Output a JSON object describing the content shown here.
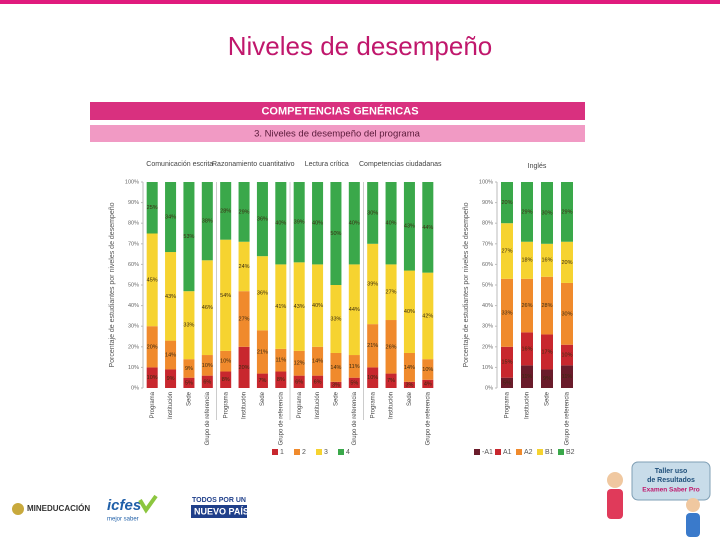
{
  "title": "Niveles de desempeño",
  "header": {
    "title": "COMPETENCIAS GENÉRICAS",
    "subtitle": "3. Niveles de desempeño del programa"
  },
  "chart_data": [
    {
      "type": "stacked_bar",
      "ylabel": "Porcentaje de estudiantes por niveles de desempeño",
      "groups": [
        "Comunicación escrita",
        "Razonamiento cuantitativo",
        "Lectura crítica",
        "Competencias ciudadanas"
      ],
      "categories": [
        "Programa",
        "Institución",
        "Sede",
        "Grupo de referencia",
        "Programa",
        "Institución",
        "Sede",
        "Grupo de referencia",
        "Programa",
        "Institución",
        "Sede",
        "Grupo de referencia",
        "Programa",
        "Institución",
        "Sede",
        "Grupo de referencia"
      ],
      "ylim": [
        0,
        100
      ],
      "yticks": [
        {
          "value": 0,
          "label": "0%"
        },
        {
          "value": 10,
          "label": "10%"
        },
        {
          "value": 20,
          "label": "20%"
        },
        {
          "value": 30,
          "label": "30%"
        },
        {
          "value": 40,
          "label": "40%"
        },
        {
          "value": 50,
          "label": "50%"
        },
        {
          "value": 60,
          "label": "60%"
        },
        {
          "value": 70,
          "label": "70%"
        },
        {
          "value": 80,
          "label": "80%"
        },
        {
          "value": 90,
          "label": "90%"
        },
        {
          "value": 100,
          "label": "100%"
        }
      ],
      "series": [
        {
          "name": "1",
          "color": "#c8272e",
          "values": [
            10,
            9,
            5,
            6,
            8,
            20,
            7,
            8,
            6,
            6,
            3,
            5,
            10,
            7,
            3,
            4
          ],
          "value_labels": [
            "10%",
            "9%",
            "5%",
            "6%",
            "8%",
            "20%",
            "7%",
            "8%",
            "6%",
            "6%",
            "3%",
            "5%",
            "10%",
            "7%",
            "3%",
            "4%"
          ]
        },
        {
          "name": "2",
          "color": "#f08a2c",
          "values": [
            20,
            14,
            9,
            10,
            10,
            27,
            21,
            11,
            12,
            14,
            14,
            11,
            21,
            26,
            14,
            10
          ],
          "value_labels": [
            "20%",
            "14%",
            "9%",
            "10%",
            "10%",
            "27%",
            "21%",
            "11%",
            "12%",
            "14%",
            "14%",
            "11%",
            "21%",
            "26%",
            "14%",
            "10%"
          ]
        },
        {
          "name": "3",
          "color": "#f6d330",
          "values": [
            45,
            43,
            33,
            46,
            54,
            24,
            36,
            41,
            43,
            40,
            33,
            44,
            39,
            27,
            40,
            42
          ],
          "value_labels": [
            "45%",
            "43%",
            "33%",
            "46%",
            "54%",
            "24%",
            "36%",
            "41%",
            "43%",
            "40%",
            "33%",
            "44%",
            "39%",
            "27%",
            "40%",
            "42%"
          ]
        },
        {
          "name": "4",
          "color": "#3aa84a",
          "values": [
            25,
            34,
            53,
            38,
            28,
            29,
            36,
            40,
            39,
            40,
            50,
            40,
            30,
            40,
            43,
            44
          ],
          "value_labels": [
            "25%",
            "34%",
            "53%",
            "38%",
            "28%",
            "29%",
            "36%",
            "40%",
            "39%",
            "40%",
            "50%",
            "40%",
            "30%",
            "40%",
            "43%",
            "44%"
          ]
        }
      ]
    },
    {
      "type": "stacked_bar",
      "title": "Inglés",
      "ylabel": "Porcentaje de estudiantes por niveles de desempeño",
      "categories": [
        "Programa",
        "Institución",
        "Sede",
        "Grupo de referencia"
      ],
      "ylim": [
        0,
        100
      ],
      "yticks": [
        {
          "value": 0,
          "label": "0%"
        },
        {
          "value": 10,
          "label": "10%"
        },
        {
          "value": 20,
          "label": "20%"
        },
        {
          "value": 30,
          "label": "30%"
        },
        {
          "value": 40,
          "label": "40%"
        },
        {
          "value": 50,
          "label": "50%"
        },
        {
          "value": 60,
          "label": "60%"
        },
        {
          "value": 70,
          "label": "70%"
        },
        {
          "value": 80,
          "label": "80%"
        },
        {
          "value": 90,
          "label": "90%"
        },
        {
          "value": 100,
          "label": "100%"
        }
      ],
      "series": [
        {
          "name": "-A1",
          "color": "#6a1c2b",
          "values": [
            5,
            11,
            9,
            11
          ],
          "value_labels": [
            "5%",
            "11%",
            "9%",
            "11%"
          ]
        },
        {
          "name": "A1",
          "color": "#c8272e",
          "values": [
            15,
            16,
            17,
            10
          ],
          "value_labels": [
            "15%",
            "16%",
            "17%",
            "10%"
          ]
        },
        {
          "name": "A2",
          "color": "#f08a2c",
          "values": [
            33,
            26,
            28,
            30
          ],
          "value_labels": [
            "33%",
            "26%",
            "28%",
            "30%"
          ]
        },
        {
          "name": "B1",
          "color": "#f6d330",
          "values": [
            27,
            18,
            16,
            20
          ],
          "value_labels": [
            "27%",
            "18%",
            "16%",
            "20%"
          ]
        },
        {
          "name": "B2",
          "color": "#3aa84a",
          "values": [
            20,
            29,
            30,
            29
          ],
          "value_labels": [
            "20%",
            "29%",
            "30%",
            "29%"
          ]
        }
      ]
    }
  ],
  "footer": {
    "mineducacion": "MINEDUCACIÓN",
    "icfes": "icfes",
    "icfes_tagline": "mejor saber",
    "pais_line1": "TODOS POR UN",
    "pais_line2": "NUEVO PAÍS",
    "taller_line1": "Taller uso",
    "taller_line2": "de Resultados",
    "taller_line3": "Examen Saber Pro"
  }
}
